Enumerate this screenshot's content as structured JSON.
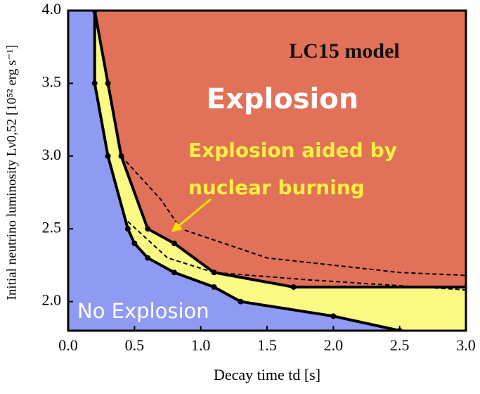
{
  "chart_data": {
    "type": "region",
    "annotations": [
      "LC15 model",
      "Explosion",
      "Explosion aided by",
      "nuclear burning",
      "No Explosion"
    ],
    "xlabel": "Decay time td [s]",
    "ylabel": "Initial neutrino luminosity Lν0,52 [10⁵² erg s⁻¹]",
    "xlim": [
      0,
      3
    ],
    "ylim": [
      1.8,
      4.0
    ],
    "xticks": [
      {
        "value": 0,
        "label": "0.0"
      },
      0.5,
      {
        "value": 1,
        "label": "1.0"
      },
      1.5,
      {
        "value": 2,
        "label": "2.0"
      },
      2.5,
      {
        "value": 3,
        "label": "3.0"
      }
    ],
    "yticks": [
      {
        "value": 2,
        "label": "2.0"
      },
      2.5,
      {
        "value": 3,
        "label": "3.0"
      },
      3.5,
      {
        "value": 4,
        "label": "4.0"
      }
    ],
    "region_colors": {
      "above": "#e2715a",
      "between": "#fbfa84",
      "below": "#8f9af2"
    },
    "boundaries": [
      {
        "style": "solid",
        "x": [
          0.2,
          0.3,
          0.4,
          0.6,
          0.8,
          1.1,
          1.7,
          3.0
        ],
        "values": [
          4.0,
          3.5,
          3.0,
          2.5,
          2.4,
          2.2,
          2.1,
          2.1
        ]
      },
      {
        "style": "solid",
        "x": [
          0.2,
          0.2,
          0.3,
          0.45,
          0.5,
          0.6,
          0.8,
          1.1,
          1.3,
          2.0,
          2.5
        ],
        "values": [
          4.0,
          3.5,
          3.0,
          2.5,
          2.4,
          2.3,
          2.2,
          2.1,
          2.0,
          1.9,
          1.8
        ]
      },
      {
        "style": "dashed",
        "x": [
          0.4,
          0.7,
          0.85,
          1.5,
          2.5,
          3.0
        ],
        "values": [
          3.0,
          2.7,
          2.5,
          2.3,
          2.2,
          2.18
        ]
      },
      {
        "style": "dashed",
        "x": [
          0.45,
          0.75,
          1.1,
          1.8,
          3.0
        ],
        "values": [
          2.55,
          2.3,
          2.2,
          2.15,
          2.08
        ]
      }
    ]
  }
}
